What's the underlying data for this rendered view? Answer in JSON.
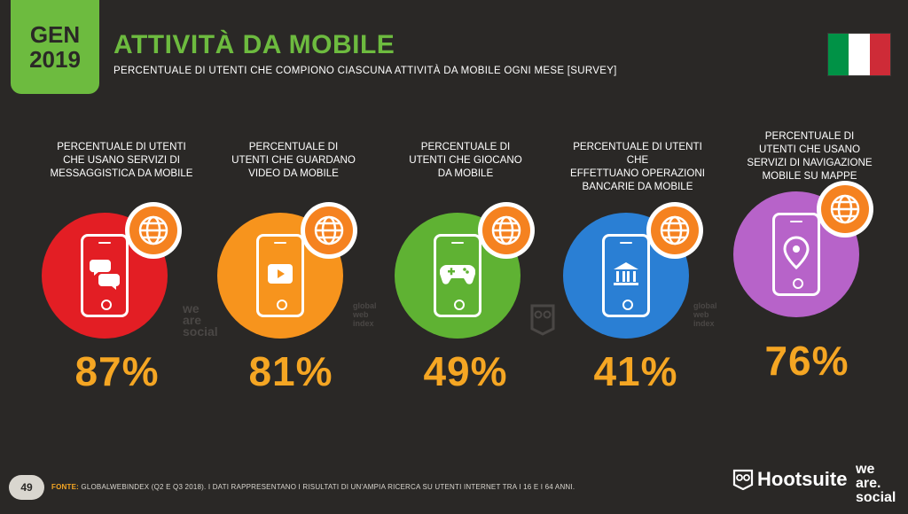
{
  "badge": {
    "line1": "GEN",
    "line2": "2019"
  },
  "title": "ATTIVITÀ DA MOBILE",
  "subtitle": "PERCENTUALE DI UTENTI CHE COMPIONO CIASCUNA ATTIVITÀ DA MOBILE OGNI MESE [SURVEY]",
  "flag_colors": [
    "#009246",
    "#ffffff",
    "#ce2b37"
  ],
  "tiles": [
    {
      "label": "PERCENTUALE DI UTENTI\nCHE USANO SERVIZI DI\nMESSAGGISTICA DA MOBILE",
      "value": "87%",
      "color": "#e31e24",
      "icon": "chat-bubbles-icon"
    },
    {
      "label": "PERCENTUALE DI\nUTENTI CHE GUARDANO\nVIDEO DA MOBILE",
      "value": "81%",
      "color": "#f7941d",
      "icon": "play-icon"
    },
    {
      "label": "PERCENTUALE DI\nUTENTI CHE GIOCANO\nDA MOBILE",
      "value": "49%",
      "color": "#5fb233",
      "icon": "gamepad-icon"
    },
    {
      "label": "PERCENTUALE DI UTENTI CHE\nEFFETTUANO OPERAZIONI\nBANCARIE DA MOBILE",
      "value": "41%",
      "color": "#2a7fd4",
      "icon": "bank-icon"
    },
    {
      "label": "PERCENTUALE DI\nUTENTI CHE USANO\nSERVIZI DI NAVIGAZIONE\nMOBILE SU MAPPE",
      "value": "76%",
      "color": "#b763c9",
      "icon": "map-pin-icon"
    }
  ],
  "pct_color": "#f5a623",
  "globe_color": "#f58220",
  "watermarks": {
    "was": "we\nare\nsocial",
    "gwi": "global\nweb\nindex"
  },
  "footer": {
    "page": "49",
    "source_label": "FONTE:",
    "source_text": "GLOBALWEBINDEX (Q2 E Q3 2018). I DATI RAPPRESENTANO I RISULTATI DI UN'AMPIA RICERCA SU UTENTI INTERNET TRA I 16 E I 64 ANNI.",
    "brand1": "Hootsuite",
    "brand2_l1": "we",
    "brand2_l2": "are.",
    "brand2_l3": "social"
  }
}
